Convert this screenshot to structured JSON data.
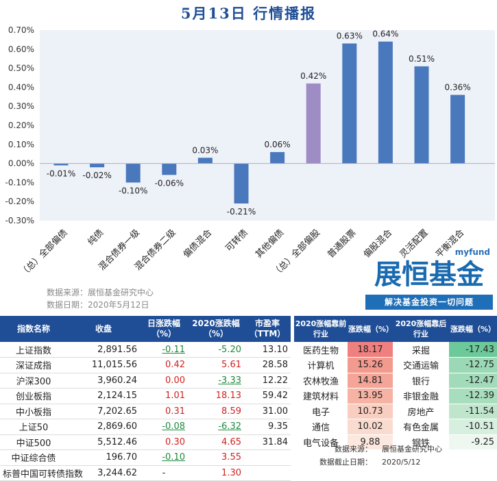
{
  "title": "5月13日  行情播报",
  "chart_data": {
    "type": "bar",
    "categories": [
      "（总）全部偏债",
      "纯债",
      "混合债券一级",
      "混合债券二级",
      "偏债混合",
      "可转债",
      "其他偏债",
      "（总）全部偏股",
      "普通股票",
      "偏股混合",
      "灵活配置",
      "平衡混合"
    ],
    "values": [
      -0.01,
      -0.02,
      -0.1,
      -0.06,
      0.03,
      -0.21,
      0.06,
      0.42,
      0.63,
      0.64,
      0.51,
      0.36
    ],
    "value_labels": [
      "-0.01%",
      "-0.02%",
      "-0.10%",
      "-0.06%",
      "0.03%",
      "-0.21%",
      "0.06%",
      "0.42%",
      "0.63%",
      "0.64%",
      "0.51%",
      "0.36%"
    ],
    "highlight_index": 7,
    "ylim": [
      -0.3,
      0.7
    ],
    "yticks": [
      0.7,
      0.6,
      0.5,
      0.4,
      0.3,
      0.2,
      0.1,
      0.0,
      -0.1,
      -0.2,
      -0.3
    ],
    "ytick_labels": [
      "0.70%",
      "0.60%",
      "0.50%",
      "0.40%",
      "0.30%",
      "0.20%",
      "0.10%",
      "0.00%",
      "-0.10%",
      "-0.20%",
      "-0.30%"
    ],
    "grid": false,
    "colors": {
      "bar": "#4a78bd",
      "highlight": "#9e8cc4",
      "plot_bg": "#edf1f8"
    }
  },
  "source": {
    "line1": "数据来源：展恒基金研究中心",
    "line2": "数据日期：2020年5月12日"
  },
  "logo": {
    "small": "myfund",
    "main": "展恒基金",
    "slogan": "解决基金投资一切问题"
  },
  "index_table": {
    "headers": [
      "指数名称",
      "收盘",
      "日涨跌幅（%）",
      "2020涨跌幅（%）",
      "市盈率（TTM）"
    ],
    "rows": [
      {
        "name": "上证指数",
        "close": "2,891.56",
        "day": "-0.11",
        "ytd": "-5.20",
        "pe": "13.10"
      },
      {
        "name": "深证成指",
        "close": "11,015.56",
        "day": "0.42",
        "ytd": "5.61",
        "pe": "28.58"
      },
      {
        "name": "沪深300",
        "close": "3,960.24",
        "day": "0.00",
        "ytd": "-3.33",
        "pe": "12.22"
      },
      {
        "name": "创业板指",
        "close": "2,124.15",
        "day": "1.01",
        "ytd": "18.13",
        "pe": "59.42"
      },
      {
        "name": "中小板指",
        "close": "7,202.65",
        "day": "0.31",
        "ytd": "8.59",
        "pe": "31.00"
      },
      {
        "name": "上证50",
        "close": "2,869.60",
        "day": "-0.08",
        "ytd": "-6.32",
        "pe": "9.35"
      },
      {
        "name": "中证500",
        "close": "5,512.46",
        "day": "0.30",
        "ytd": "4.65",
        "pe": "31.84"
      },
      {
        "name": "中证综合债",
        "close": "196.70",
        "day": "-0.10",
        "ytd": "3.55",
        "pe": ""
      },
      {
        "name": "标普中国可转债指数",
        "close": "3,244.62",
        "day": "-",
        "ytd": "1.30",
        "pe": ""
      }
    ]
  },
  "industry_table": {
    "headers": [
      "2020涨幅靠前行业",
      "涨跌幅（%）",
      "2020涨幅靠后行业",
      "涨跌幅（%）"
    ],
    "rows": [
      {
        "top": "医药生物",
        "top_val": "18.17",
        "bottom": "采掘",
        "bottom_val": "-17.43"
      },
      {
        "top": "计算机",
        "top_val": "15.26",
        "bottom": "交通运输",
        "bottom_val": "-12.75"
      },
      {
        "top": "农林牧渔",
        "top_val": "14.81",
        "bottom": "银行",
        "bottom_val": "-12.47"
      },
      {
        "top": "建筑材料",
        "top_val": "13.95",
        "bottom": "非银金融",
        "bottom_val": "-12.39"
      },
      {
        "top": "电子",
        "top_val": "10.73",
        "bottom": "房地产",
        "bottom_val": "-11.54"
      },
      {
        "top": "通信",
        "top_val": "10.02",
        "bottom": "有色金属",
        "bottom_val": "-10.51"
      },
      {
        "top": "电气设备",
        "top_val": "9.88",
        "bottom": "钢铁",
        "bottom_val": "-9.25"
      }
    ],
    "colors": {
      "top": [
        "#f08080",
        "#f39a8f",
        "#f4a597",
        "#f6b3a4",
        "#f9cdbf",
        "#fadbd0",
        "#fde8df"
      ],
      "bottom": [
        "#6ec99a",
        "#9bd9b6",
        "#a1dbba",
        "#a8debe",
        "#bfe6cd",
        "#d6efde",
        "#eef8f1"
      ]
    }
  },
  "footer": {
    "source_label": "数据来源：",
    "source_value": "展恒基金研究中心",
    "date_label": "数据截止日期：",
    "date_value": "2020/5/12"
  }
}
